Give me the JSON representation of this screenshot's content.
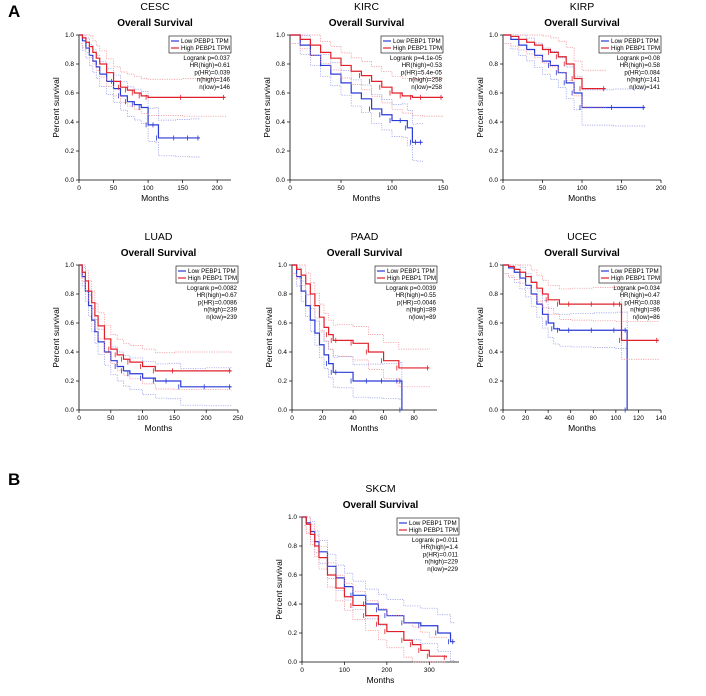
{
  "figure": {
    "panel_a_label": "A",
    "panel_b_label": "B"
  },
  "chart_data": [
    {
      "type": "line",
      "cancer": "CESC",
      "title": "Overall Survival",
      "xlabel": "Months",
      "ylabel": "Percent survival",
      "xlim": [
        0,
        220
      ],
      "ylim": [
        0,
        1.0
      ],
      "xticks": [
        0,
        50,
        100,
        150,
        200
      ],
      "yticks": [
        0.0,
        0.2,
        0.4,
        0.6,
        0.8,
        1.0
      ],
      "legend": {
        "position": "top-right",
        "entries": [
          "Low PEBP1 TPM",
          "High PEBP1 TPM"
        ]
      },
      "stats": [
        "Logrank p=0.037",
        "HR(high)=0.61",
        "p(HR)=0.039",
        "n(high)=146",
        "n(low)=146"
      ],
      "series": [
        {
          "name": "Low PEBP1 TPM",
          "color": "#2a3ad6",
          "x": [
            0,
            5,
            10,
            15,
            20,
            25,
            30,
            40,
            50,
            60,
            70,
            80,
            90,
            100,
            110,
            115,
            140,
            160,
            175
          ],
          "y": [
            1.0,
            0.96,
            0.91,
            0.86,
            0.82,
            0.78,
            0.73,
            0.68,
            0.63,
            0.58,
            0.54,
            0.52,
            0.5,
            0.38,
            0.38,
            0.29,
            0.29,
            0.29,
            0.29
          ]
        },
        {
          "name": "High PEBP1 TPM",
          "color": "#e0202a",
          "x": [
            0,
            5,
            10,
            15,
            20,
            25,
            30,
            40,
            50,
            60,
            70,
            80,
            90,
            100,
            150,
            212
          ],
          "y": [
            1.0,
            0.98,
            0.95,
            0.92,
            0.88,
            0.84,
            0.8,
            0.74,
            0.68,
            0.64,
            0.62,
            0.6,
            0.58,
            0.57,
            0.57,
            0.57
          ]
        }
      ]
    },
    {
      "type": "line",
      "cancer": "KIRC",
      "title": "Overall Survival",
      "xlabel": "Months",
      "ylabel": "Percent survival",
      "xlim": [
        0,
        150
      ],
      "ylim": [
        0,
        1.0
      ],
      "xticks": [
        0,
        50,
        100,
        150
      ],
      "yticks": [
        0.0,
        0.2,
        0.4,
        0.6,
        0.8,
        1.0
      ],
      "legend": {
        "position": "top-right",
        "entries": [
          "Low PEBP1 TPM",
          "High PEBP1 TPM"
        ]
      },
      "stats": [
        "Logrank p=4.1e-05",
        "HR(high)=0.53",
        "p(HR)=5.4e-05",
        "n(high)=258",
        "n(low)=258"
      ],
      "series": [
        {
          "name": "Low PEBP1 TPM",
          "color": "#2a3ad6",
          "x": [
            0,
            10,
            20,
            30,
            40,
            50,
            60,
            70,
            80,
            90,
            100,
            110,
            115,
            120,
            125,
            130
          ],
          "y": [
            1.0,
            0.93,
            0.86,
            0.79,
            0.73,
            0.67,
            0.6,
            0.56,
            0.49,
            0.45,
            0.41,
            0.41,
            0.36,
            0.26,
            0.26,
            0.26
          ]
        },
        {
          "name": "High PEBP1 TPM",
          "color": "#e0202a",
          "x": [
            0,
            10,
            20,
            30,
            40,
            50,
            60,
            70,
            80,
            90,
            100,
            110,
            120,
            130,
            150
          ],
          "y": [
            1.0,
            0.97,
            0.93,
            0.88,
            0.84,
            0.79,
            0.75,
            0.72,
            0.68,
            0.64,
            0.6,
            0.58,
            0.57,
            0.57,
            0.57
          ]
        }
      ]
    },
    {
      "type": "line",
      "cancer": "KIRP",
      "title": "Overall Survival",
      "xlabel": "Months",
      "ylabel": "Percent survival",
      "xlim": [
        0,
        200
      ],
      "ylim": [
        0,
        1.0
      ],
      "xticks": [
        0,
        50,
        100,
        150,
        200
      ],
      "yticks": [
        0.0,
        0.2,
        0.4,
        0.6,
        0.8,
        1.0
      ],
      "legend": {
        "position": "top-right",
        "entries": [
          "Low PEBP1 TPM",
          "High PEBP1 TPM"
        ]
      },
      "stats": [
        "Logrank p=0.08",
        "HR(high)=0.58",
        "p(HR)=0.084",
        "n(high)=141",
        "n(low)=141"
      ],
      "series": [
        {
          "name": "Low PEBP1 TPM",
          "color": "#2a3ad6",
          "x": [
            0,
            10,
            20,
            30,
            40,
            50,
            60,
            70,
            80,
            90,
            100,
            140,
            180
          ],
          "y": [
            1.0,
            0.97,
            0.93,
            0.9,
            0.86,
            0.82,
            0.79,
            0.74,
            0.67,
            0.6,
            0.5,
            0.5,
            0.5
          ]
        },
        {
          "name": "High PEBP1 TPM",
          "color": "#e0202a",
          "x": [
            0,
            10,
            20,
            30,
            40,
            50,
            60,
            70,
            80,
            90,
            100,
            130
          ],
          "y": [
            1.0,
            0.99,
            0.97,
            0.95,
            0.93,
            0.9,
            0.88,
            0.85,
            0.8,
            0.7,
            0.63,
            0.63
          ]
        }
      ]
    },
    {
      "type": "line",
      "cancer": "LUAD",
      "title": "Overall Survival",
      "xlabel": "Months",
      "ylabel": "Percent survival",
      "xlim": [
        0,
        250
      ],
      "ylim": [
        0,
        1.0
      ],
      "xticks": [
        0,
        50,
        100,
        150,
        200,
        250
      ],
      "yticks": [
        0.0,
        0.2,
        0.4,
        0.6,
        0.8,
        1.0
      ],
      "legend": {
        "position": "top-right",
        "entries": [
          "Low PEBP1 TPM",
          "High PEBP1 TPM"
        ]
      },
      "stats": [
        "Logrank p=0.0082",
        "HR(high)=0.67",
        "p(HR)=0.0086",
        "n(high)=239",
        "n(low)=239"
      ],
      "series": [
        {
          "name": "Low PEBP1 TPM",
          "color": "#2a3ad6",
          "x": [
            0,
            5,
            10,
            15,
            20,
            25,
            30,
            40,
            50,
            60,
            70,
            80,
            100,
            120,
            140,
            160,
            200,
            240
          ],
          "y": [
            1.0,
            0.92,
            0.82,
            0.72,
            0.62,
            0.54,
            0.47,
            0.4,
            0.34,
            0.3,
            0.27,
            0.25,
            0.22,
            0.2,
            0.2,
            0.16,
            0.16,
            0.16
          ]
        },
        {
          "name": "High PEBP1 TPM",
          "color": "#e0202a",
          "x": [
            0,
            5,
            10,
            15,
            20,
            25,
            30,
            40,
            50,
            60,
            70,
            80,
            100,
            120,
            150,
            240
          ],
          "y": [
            1.0,
            0.95,
            0.89,
            0.82,
            0.74,
            0.65,
            0.58,
            0.49,
            0.42,
            0.38,
            0.35,
            0.33,
            0.3,
            0.27,
            0.27,
            0.27
          ]
        }
      ]
    },
    {
      "type": "line",
      "cancer": "PAAD",
      "title": "Overall Survival",
      "xlabel": "Months",
      "ylabel": "Percent survival",
      "xlim": [
        0,
        95
      ],
      "ylim": [
        0,
        1.0
      ],
      "xticks": [
        0,
        20,
        40,
        60,
        80
      ],
      "yticks": [
        0.0,
        0.2,
        0.4,
        0.6,
        0.8,
        1.0
      ],
      "legend": {
        "position": "top-right",
        "entries": [
          "Low PEBP1 TPM",
          "High PEBP1 TPM"
        ]
      },
      "stats": [
        "Logrank p=0.0039",
        "HR(high)=0.55",
        "p(HR)=0.0046",
        "n(high)=89",
        "n(low)=89"
      ],
      "series": [
        {
          "name": "Low PEBP1 TPM",
          "color": "#2a3ad6",
          "x": [
            0,
            3,
            6,
            9,
            12,
            15,
            18,
            21,
            24,
            27,
            30,
            40,
            50,
            60,
            70,
            72,
            72
          ],
          "y": [
            1.0,
            0.92,
            0.82,
            0.72,
            0.62,
            0.53,
            0.45,
            0.38,
            0.32,
            0.26,
            0.26,
            0.2,
            0.2,
            0.2,
            0.2,
            0.2,
            0.0
          ]
        },
        {
          "name": "High PEBP1 TPM",
          "color": "#e0202a",
          "x": [
            0,
            3,
            6,
            9,
            12,
            15,
            18,
            21,
            24,
            27,
            30,
            40,
            50,
            60,
            70,
            90
          ],
          "y": [
            1.0,
            0.97,
            0.93,
            0.87,
            0.8,
            0.72,
            0.64,
            0.57,
            0.52,
            0.48,
            0.48,
            0.46,
            0.4,
            0.34,
            0.29,
            0.29
          ]
        }
      ]
    },
    {
      "type": "line",
      "cancer": "UCEC",
      "title": "Overall Survival",
      "xlabel": "Months",
      "ylabel": "Percent survival",
      "xlim": [
        0,
        140
      ],
      "ylim": [
        0,
        1.0
      ],
      "xticks": [
        0,
        20,
        40,
        60,
        80,
        100,
        120,
        140
      ],
      "yticks": [
        0.0,
        0.2,
        0.4,
        0.6,
        0.8,
        1.0
      ],
      "legend": {
        "position": "top-right",
        "entries": [
          "Low PEBP1 TPM",
          "High PEBP1 TPM"
        ]
      },
      "stats": [
        "Logrank p=0.034",
        "HR(high)=0.47",
        "p(HR)=0.038",
        "n(high)=86",
        "n(low)=86"
      ],
      "series": [
        {
          "name": "Low PEBP1 TPM",
          "color": "#2a3ad6",
          "x": [
            0,
            5,
            10,
            15,
            20,
            25,
            30,
            35,
            40,
            45,
            50,
            60,
            80,
            100,
            110,
            110
          ],
          "y": [
            1.0,
            0.98,
            0.95,
            0.91,
            0.86,
            0.8,
            0.73,
            0.66,
            0.6,
            0.56,
            0.55,
            0.55,
            0.55,
            0.55,
            0.55,
            0.0
          ]
        },
        {
          "name": "High PEBP1 TPM",
          "color": "#e0202a",
          "x": [
            0,
            5,
            10,
            15,
            20,
            25,
            30,
            35,
            40,
            50,
            60,
            80,
            100,
            105,
            105,
            138
          ],
          "y": [
            1.0,
            0.99,
            0.97,
            0.95,
            0.92,
            0.88,
            0.84,
            0.8,
            0.76,
            0.73,
            0.73,
            0.73,
            0.73,
            0.73,
            0.48,
            0.48
          ]
        }
      ]
    },
    {
      "type": "line",
      "cancer": "SKCM",
      "title": "Overall Survival",
      "xlabel": "Months",
      "ylabel": "Percent survival",
      "xlim": [
        0,
        370
      ],
      "ylim": [
        0,
        1.0
      ],
      "xticks": [
        0,
        100,
        200,
        300
      ],
      "yticks": [
        0.0,
        0.2,
        0.4,
        0.6,
        0.8,
        1.0
      ],
      "legend": {
        "position": "top-right",
        "entries": [
          "Low PEBP1 TPM",
          "High PEBP1 TPM"
        ]
      },
      "stats": [
        "Logrank p=0.011",
        "HR(high)=1.4",
        "p(HR)=0.011",
        "n(high)=229",
        "n(low)=229"
      ],
      "series": [
        {
          "name": "Low PEBP1 TPM",
          "color": "#2a3ad6",
          "x": [
            0,
            10,
            20,
            30,
            40,
            60,
            80,
            100,
            120,
            150,
            180,
            200,
            240,
            280,
            320,
            350,
            360
          ],
          "y": [
            1.0,
            0.96,
            0.9,
            0.83,
            0.76,
            0.66,
            0.58,
            0.52,
            0.46,
            0.4,
            0.36,
            0.32,
            0.27,
            0.25,
            0.2,
            0.14,
            0.14
          ]
        },
        {
          "name": "High PEBP1 TPM",
          "color": "#e0202a",
          "x": [
            0,
            10,
            20,
            30,
            40,
            60,
            80,
            100,
            120,
            150,
            180,
            200,
            240,
            260,
            280,
            300,
            340
          ],
          "y": [
            1.0,
            0.95,
            0.88,
            0.8,
            0.72,
            0.6,
            0.51,
            0.45,
            0.39,
            0.32,
            0.26,
            0.21,
            0.15,
            0.12,
            0.08,
            0.04,
            0.03
          ]
        }
      ]
    }
  ]
}
